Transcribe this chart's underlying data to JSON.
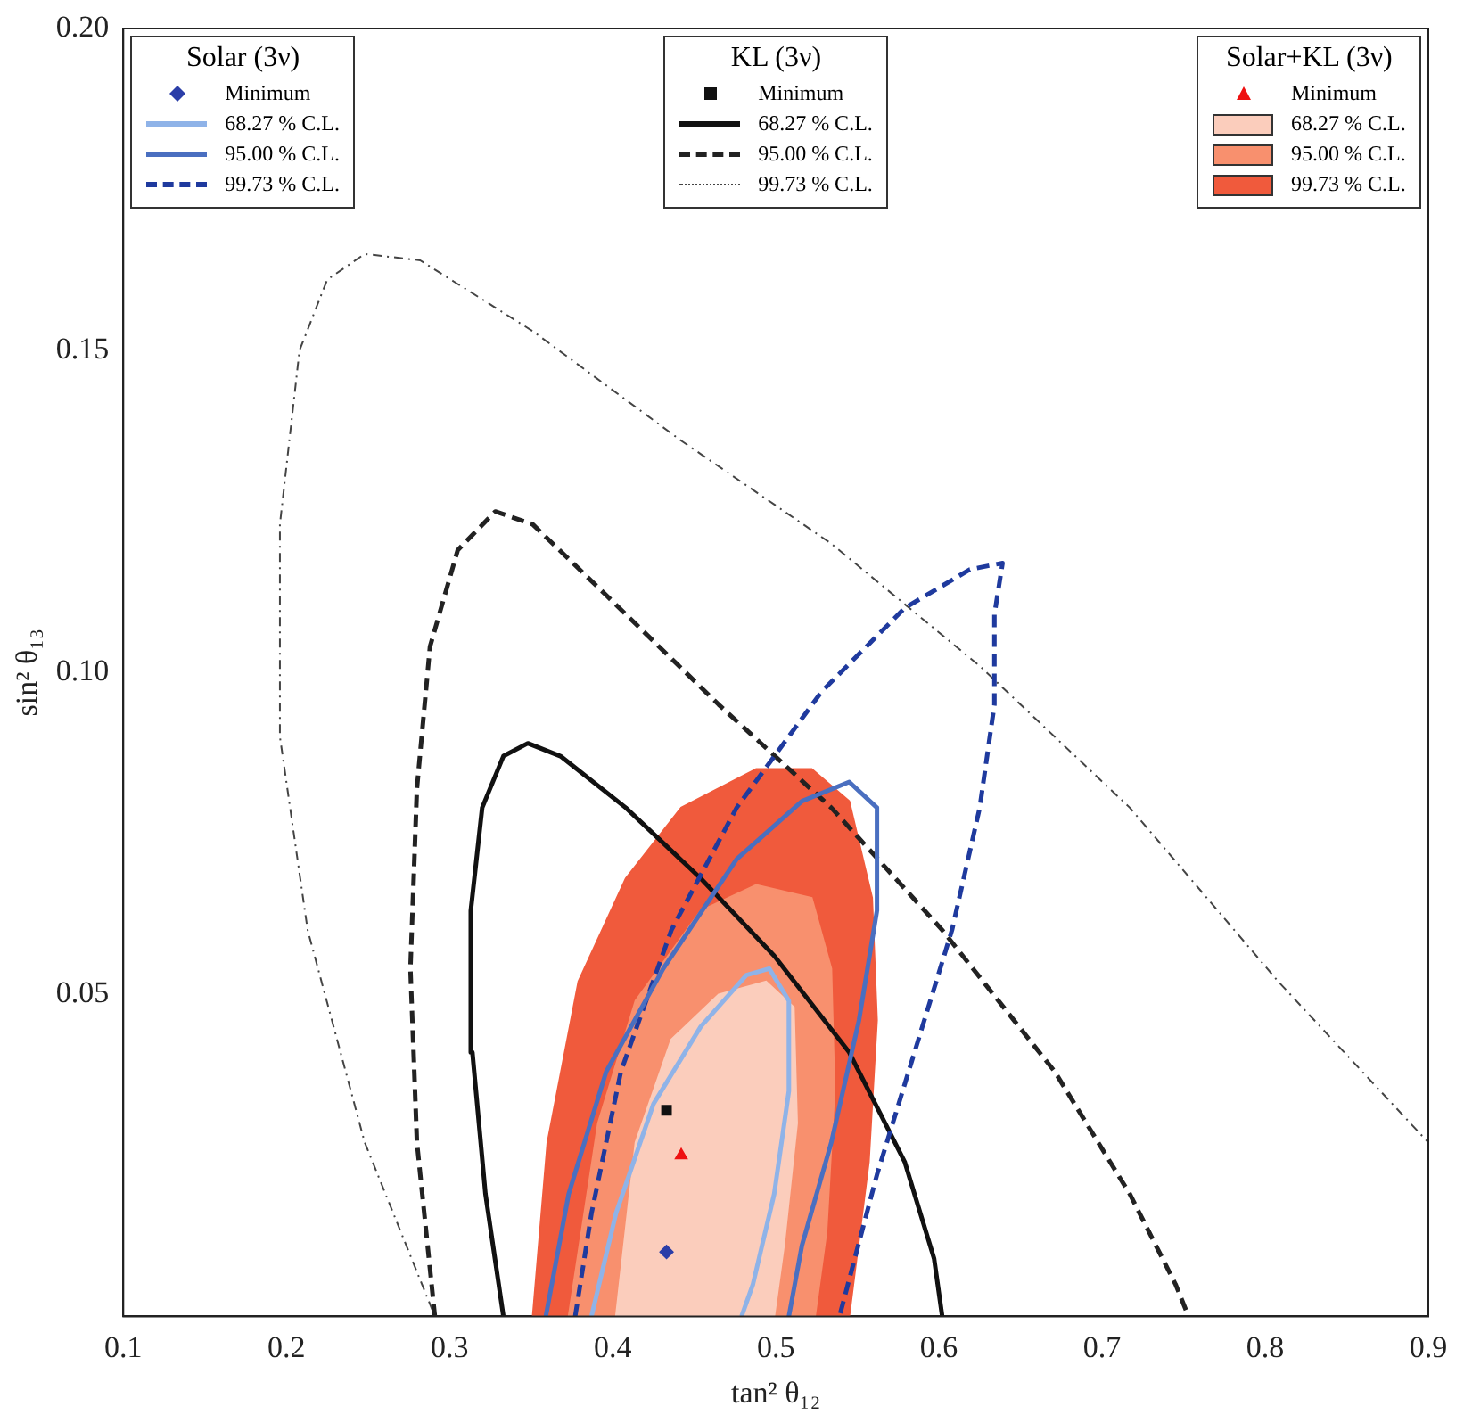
{
  "chart_data": {
    "type": "line",
    "xlabel": "tan² θ₁₂",
    "ylabel": "sin² θ₁₃",
    "xlim": [
      0.1,
      0.9
    ],
    "xticks": [
      0.1,
      0.2,
      0.3,
      0.4,
      0.5,
      0.6,
      0.7,
      0.8,
      0.9
    ],
    "ylim": [
      0,
      0.2
    ],
    "yticks": [
      {
        "value": 0.05,
        "label": "0.05"
      },
      {
        "value": 0.1,
        "label": "0.10"
      },
      {
        "value": 0.15,
        "label": "0.15"
      },
      {
        "value": 0.2,
        "label": "0.20"
      }
    ],
    "grid": false,
    "legend": "top",
    "legend_title": [
      "Solar (3ν)",
      "KL (3ν)",
      "Solar+KL (3ν)"
    ],
    "series": [
      {
        "name": "Minimum",
        "type": "scatter",
        "marker": "diamond",
        "color": "#2b3ea8",
        "x": [
          0.433
        ],
        "values": [
          0.01
        ]
      },
      {
        "name": "68.27 % C.L.",
        "type": "line",
        "line_style": "solid",
        "color": "#8fb3e8",
        "x": [
          0.387,
          0.402,
          0.425,
          0.454,
          0.482,
          0.496,
          0.508,
          0.508,
          0.499,
          0.486,
          0.479
        ],
        "values": [
          0,
          0.016,
          0.033,
          0.045,
          0.053,
          0.054,
          0.049,
          0.035,
          0.019,
          0.005,
          0
        ]
      },
      {
        "name": "95.00 % C.L.",
        "type": "line",
        "line_style": "solid",
        "color": "#4a6fc0",
        "x": [
          0.359,
          0.373,
          0.396,
          0.431,
          0.476,
          0.516,
          0.545,
          0.562,
          0.562,
          0.551,
          0.534,
          0.516,
          0.508
        ],
        "values": [
          0,
          0.019,
          0.038,
          0.054,
          0.071,
          0.08,
          0.083,
          0.079,
          0.063,
          0.046,
          0.027,
          0.011,
          0
        ]
      },
      {
        "name": "99.73 % C.L.",
        "type": "line",
        "line_style": "dashed",
        "color": "#1f3a9e",
        "x": [
          0.377,
          0.387,
          0.405,
          0.436,
          0.476,
          0.528,
          0.579,
          0.619,
          0.639,
          0.634,
          0.634,
          0.625,
          0.608,
          0.585,
          0.562,
          0.539
        ],
        "values": [
          0,
          0.016,
          0.038,
          0.06,
          0.079,
          0.097,
          0.11,
          0.116,
          0.117,
          0.109,
          0.095,
          0.079,
          0.06,
          0.041,
          0.022,
          0
        ]
      },
      {
        "name": "Minimum",
        "type": "scatter",
        "marker": "square",
        "color": "#111111",
        "x": [
          0.433
        ],
        "values": [
          0.032
        ]
      },
      {
        "name": "68.27 % C.L.",
        "type": "line",
        "line_style": "solid",
        "color": "#111111",
        "x": [
          0.333,
          0.322,
          0.314,
          0.313,
          0.32,
          0.333,
          0.348,
          0.368,
          0.408,
          0.454,
          0.499,
          0.545,
          0.579,
          0.597,
          0.602
        ],
        "values": [
          0,
          0.019,
          0.041,
          0.063,
          0.079,
          0.087,
          0.089,
          0.087,
          0.079,
          0.068,
          0.056,
          0.041,
          0.024,
          0.009,
          0
        ]
      },
      {
        "name": "95.00 % C.L.",
        "type": "line",
        "line_style": "dashed",
        "color": "#222222",
        "x": [
          0.291,
          0.28,
          0.276,
          0.28,
          0.288,
          0.305,
          0.328,
          0.351,
          0.396,
          0.465,
          0.534,
          0.602,
          0.671,
          0.717,
          0.745,
          0.753
        ],
        "values": [
          0,
          0.027,
          0.054,
          0.082,
          0.104,
          0.119,
          0.125,
          0.123,
          0.112,
          0.095,
          0.079,
          0.06,
          0.038,
          0.019,
          0.005,
          0
        ]
      },
      {
        "name": "99.73 % C.L.",
        "type": "line",
        "line_style": "dotted",
        "color": "#444444",
        "x": [
          0.291,
          0.248,
          0.213,
          0.196,
          0.196,
          0.208,
          0.225,
          0.248,
          0.282,
          0.351,
          0.442,
          0.534,
          0.625,
          0.717,
          0.808,
          0.9
        ],
        "values": [
          0,
          0.027,
          0.06,
          0.09,
          0.123,
          0.15,
          0.161,
          0.165,
          0.164,
          0.153,
          0.136,
          0.12,
          0.101,
          0.079,
          0.052,
          0.027
        ]
      },
      {
        "name": "Minimum",
        "type": "scatter",
        "marker": "triangle",
        "color": "#ee1111",
        "x": [
          0.442
        ],
        "values": [
          0.025
        ]
      },
      {
        "name": "68.27 % C.L.",
        "type": "area",
        "color": "#fbcdbc",
        "x": [
          0.402,
          0.414,
          0.436,
          0.465,
          0.494,
          0.511,
          0.513,
          0.505,
          0.499
        ],
        "values": [
          0,
          0.027,
          0.043,
          0.05,
          0.052,
          0.048,
          0.03,
          0.011,
          0
        ]
      },
      {
        "name": "95.00 % C.L.",
        "type": "area",
        "color": "#f8906e",
        "x": [
          0.373,
          0.391,
          0.414,
          0.454,
          0.488,
          0.522,
          0.534,
          0.536,
          0.531,
          0.524
        ],
        "values": [
          0,
          0.03,
          0.049,
          0.063,
          0.067,
          0.065,
          0.054,
          0.035,
          0.013,
          0
        ]
      },
      {
        "name": "99.73 % C.L.",
        "type": "area",
        "color": "#f05a3c",
        "x": [
          0.351,
          0.36,
          0.379,
          0.408,
          0.442,
          0.488,
          0.522,
          0.545,
          0.559,
          0.562,
          0.557,
          0.545
        ],
        "values": [
          0,
          0.027,
          0.052,
          0.068,
          0.079,
          0.085,
          0.085,
          0.08,
          0.065,
          0.046,
          0.024,
          0
        ]
      }
    ]
  }
}
